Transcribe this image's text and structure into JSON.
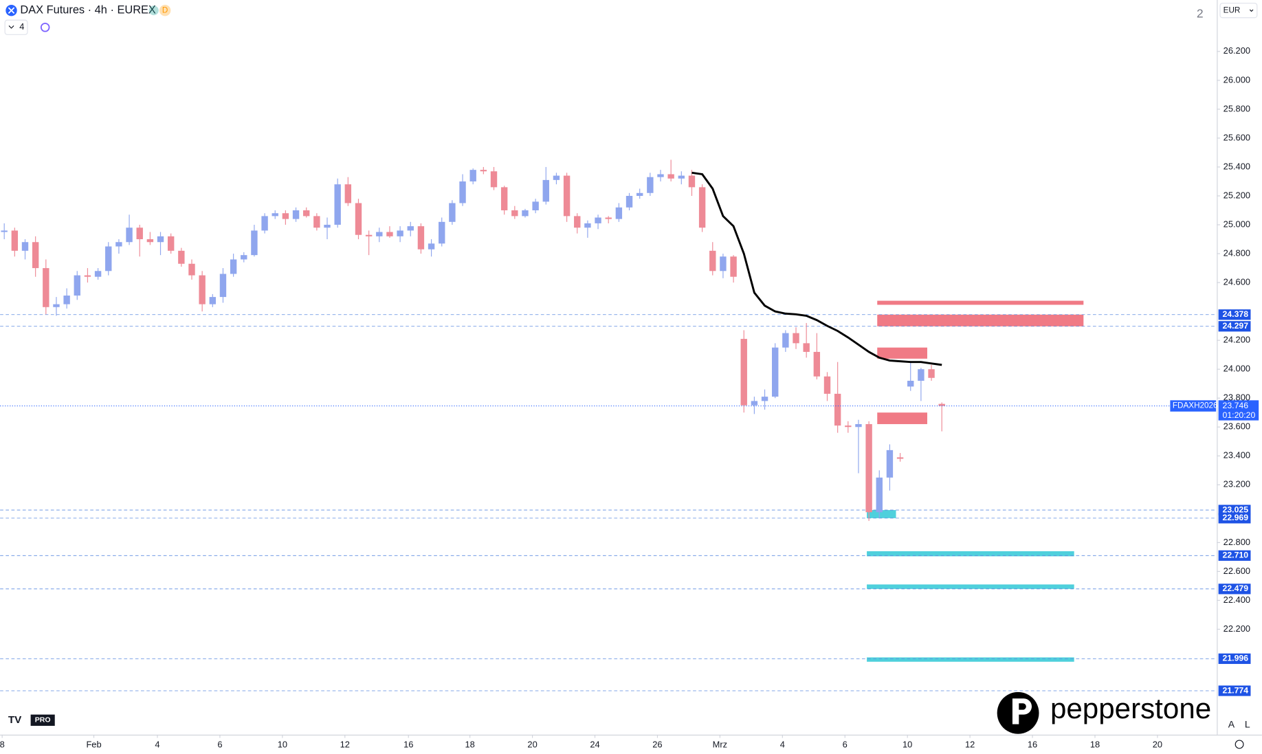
{
  "header": {
    "title": "DAX Futures · 4h · EUREX",
    "badge": "D",
    "indicator_count": "4",
    "layout_count": "2",
    "currency": "EUR",
    "scale_auto": "A",
    "scale_log": "L",
    "brand": "pepperstone",
    "tv_badge": "PRO"
  },
  "chart_data": {
    "type": "candlestick",
    "up_color": "#8fa6ee",
    "down_color": "#ee8a96",
    "ma_color": "#000000",
    "xlim": [
      -0.4,
      116.4
    ],
    "xticks": [
      {
        "value": -0.2,
        "label": "8"
      },
      {
        "value": 8.6,
        "label": "Feb"
      },
      {
        "value": 14.7,
        "label": "4"
      },
      {
        "value": 20.7,
        "label": "6"
      },
      {
        "value": 26.7,
        "label": "10"
      },
      {
        "value": 32.7,
        "label": "12"
      },
      {
        "value": 38.8,
        "label": "16"
      },
      {
        "value": 44.7,
        "label": "18"
      },
      {
        "value": 50.7,
        "label": "20"
      },
      {
        "value": 56.7,
        "label": "24"
      },
      {
        "value": 62.7,
        "label": "26"
      },
      {
        "value": 68.7,
        "label": "Mrz"
      },
      {
        "value": 74.7,
        "label": "4"
      },
      {
        "value": 80.7,
        "label": "6"
      },
      {
        "value": 86.7,
        "label": "10"
      },
      {
        "value": 92.7,
        "label": "12"
      },
      {
        "value": 98.7,
        "label": "16"
      },
      {
        "value": 104.7,
        "label": "18"
      },
      {
        "value": 110.7,
        "label": "20"
      }
    ],
    "ylim": [
      21470,
      26556
    ],
    "yticks": [
      {
        "value": 26200,
        "label": "26.200"
      },
      {
        "value": 26000,
        "label": "26.000"
      },
      {
        "value": 25800,
        "label": "25.800"
      },
      {
        "value": 25600,
        "label": "25.600"
      },
      {
        "value": 25400,
        "label": "25.400"
      },
      {
        "value": 25200,
        "label": "25.200"
      },
      {
        "value": 25000,
        "label": "25.000"
      },
      {
        "value": 24800,
        "label": "24.800"
      },
      {
        "value": 24600,
        "label": "24.600"
      },
      {
        "value": 24200,
        "label": "24.200"
      },
      {
        "value": 24000,
        "label": "24.000"
      },
      {
        "value": 23800,
        "label": "23.800"
      },
      {
        "value": 23600,
        "label": "23.600"
      },
      {
        "value": 23400,
        "label": "23.400"
      },
      {
        "value": 23200,
        "label": "23.200"
      },
      {
        "value": 22800,
        "label": "22.800"
      },
      {
        "value": 22600,
        "label": "22.600"
      },
      {
        "value": 22400,
        "label": "22.400"
      },
      {
        "value": 22200,
        "label": "22.200"
      }
    ],
    "ohlc": [
      [
        24950,
        25010,
        24900,
        24960
      ],
      [
        24960,
        24980,
        24780,
        24820
      ],
      [
        24820,
        24900,
        24760,
        24880
      ],
      [
        24880,
        24920,
        24640,
        24700
      ],
      [
        24700,
        24760,
        24380,
        24430
      ],
      [
        24430,
        24500,
        24370,
        24450
      ],
      [
        24450,
        24560,
        24420,
        24510
      ],
      [
        24510,
        24680,
        24480,
        24650
      ],
      [
        24650,
        24700,
        24600,
        24640
      ],
      [
        24640,
        24700,
        24620,
        24680
      ],
      [
        24680,
        24880,
        24650,
        24850
      ],
      [
        24850,
        24900,
        24800,
        24880
      ],
      [
        24880,
        25070,
        24860,
        24980
      ],
      [
        24980,
        25000,
        24780,
        24900
      ],
      [
        24900,
        24950,
        24860,
        24880
      ],
      [
        24880,
        24950,
        24790,
        24920
      ],
      [
        24920,
        24940,
        24800,
        24820
      ],
      [
        24820,
        24840,
        24710,
        24730
      ],
      [
        24730,
        24760,
        24620,
        24650
      ],
      [
        24650,
        24680,
        24400,
        24450
      ],
      [
        24450,
        24520,
        24430,
        24500
      ],
      [
        24500,
        24700,
        24460,
        24660
      ],
      [
        24660,
        24800,
        24640,
        24760
      ],
      [
        24760,
        24810,
        24740,
        24790
      ],
      [
        24790,
        25000,
        24780,
        24960
      ],
      [
        24960,
        25080,
        24940,
        25060
      ],
      [
        25060,
        25100,
        25040,
        25080
      ],
      [
        25080,
        25100,
        25000,
        25040
      ],
      [
        25040,
        25120,
        25020,
        25100
      ],
      [
        25100,
        25120,
        25050,
        25060
      ],
      [
        25060,
        25080,
        24960,
        24980
      ],
      [
        24980,
        25050,
        24900,
        25000
      ],
      [
        25000,
        25320,
        24980,
        25280
      ],
      [
        25280,
        25330,
        25130,
        25150
      ],
      [
        25150,
        25180,
        24900,
        24930
      ],
      [
        24930,
        24960,
        24790,
        24920
      ],
      [
        24920,
        24980,
        24880,
        24950
      ],
      [
        24950,
        24990,
        24910,
        24920
      ],
      [
        24920,
        24990,
        24880,
        24960
      ],
      [
        24960,
        25020,
        24920,
        24990
      ],
      [
        24990,
        25010,
        24800,
        24830
      ],
      [
        24830,
        24900,
        24780,
        24870
      ],
      [
        24870,
        25050,
        24850,
        25020
      ],
      [
        25020,
        25170,
        25000,
        25150
      ],
      [
        25150,
        25350,
        25130,
        25300
      ],
      [
        25300,
        25390,
        25280,
        25380
      ],
      [
        25380,
        25400,
        25350,
        25370
      ],
      [
        25370,
        25400,
        25240,
        25260
      ],
      [
        25260,
        25270,
        25070,
        25100
      ],
      [
        25100,
        25130,
        25040,
        25060
      ],
      [
        25060,
        25110,
        25050,
        25100
      ],
      [
        25100,
        25180,
        25080,
        25160
      ],
      [
        25160,
        25400,
        25140,
        25310
      ],
      [
        25310,
        25360,
        25280,
        25340
      ],
      [
        25340,
        25360,
        25020,
        25060
      ],
      [
        25060,
        25080,
        24940,
        24980
      ],
      [
        24980,
        25030,
        24910,
        25010
      ],
      [
        25010,
        25070,
        24970,
        25050
      ],
      [
        25050,
        25060,
        25010,
        25040
      ],
      [
        25040,
        25150,
        25020,
        25120
      ],
      [
        25120,
        25220,
        25100,
        25200
      ],
      [
        25200,
        25250,
        25180,
        25220
      ],
      [
        25220,
        25360,
        25200,
        25330
      ],
      [
        25330,
        25380,
        25300,
        25350
      ],
      [
        25350,
        25450,
        25300,
        25320
      ],
      [
        25320,
        25370,
        25280,
        25340
      ],
      [
        25340,
        25380,
        25200,
        25260
      ],
      [
        25260,
        25280,
        24950,
        24980
      ],
      [
        24820,
        24880,
        24650,
        24680
      ],
      [
        24680,
        24800,
        24630,
        24780
      ],
      [
        24780,
        24790,
        24600,
        24640
      ],
      [
        24210,
        24270,
        23700,
        23750
      ],
      [
        23750,
        23810,
        23690,
        23780
      ],
      [
        23780,
        23860,
        23720,
        23810
      ],
      [
        23810,
        24180,
        23800,
        24150
      ],
      [
        24150,
        24270,
        24120,
        24250
      ],
      [
        24250,
        24290,
        24140,
        24180
      ],
      [
        24180,
        24320,
        24080,
        24120
      ],
      [
        24120,
        24250,
        23930,
        23950
      ],
      [
        23950,
        23980,
        23780,
        23830
      ],
      [
        23830,
        24050,
        23560,
        23610
      ],
      [
        23610,
        23640,
        23560,
        23600
      ],
      [
        23600,
        23650,
        23280,
        23620
      ],
      [
        23620,
        23640,
        22950,
        23010
      ],
      [
        23010,
        23300,
        22970,
        23250
      ],
      [
        23250,
        23480,
        23160,
        23440
      ],
      [
        23390,
        23420,
        23360,
        23380
      ],
      [
        23880,
        24050,
        23850,
        23920
      ],
      [
        23920,
        24010,
        23780,
        24000
      ],
      [
        24000,
        24030,
        23920,
        23940
      ],
      [
        23760,
        23770,
        23570,
        23746
      ]
    ],
    "ma": [
      null,
      null,
      null,
      null,
      null,
      null,
      null,
      null,
      null,
      null,
      null,
      null,
      null,
      null,
      null,
      null,
      null,
      null,
      null,
      null,
      null,
      null,
      null,
      null,
      null,
      null,
      null,
      null,
      null,
      null,
      null,
      null,
      null,
      null,
      null,
      null,
      null,
      null,
      null,
      null,
      null,
      null,
      null,
      null,
      null,
      null,
      null,
      null,
      null,
      null,
      null,
      null,
      null,
      null,
      null,
      null,
      null,
      null,
      null,
      null,
      null,
      null,
      null,
      null,
      null,
      null,
      25360,
      25350,
      25250,
      25060,
      24990,
      24800,
      24530,
      24440,
      24400,
      24385,
      24380,
      24370,
      24340,
      24300,
      24265,
      24220,
      24170,
      24120,
      24080,
      24060,
      24055,
      24050,
      24050,
      24040,
      24030
    ],
    "zones": [
      {
        "x": [
          83.8,
          103.6
        ],
        "range": [
          24446,
          24474
        ],
        "color": "#f07a85"
      },
      {
        "x": [
          83.8,
          103.6
        ],
        "range": [
          24297,
          24378
        ],
        "color": "#f07a85"
      },
      {
        "x": [
          83.8,
          88.6
        ],
        "range": [
          24073,
          24150
        ],
        "color": "#f07a85"
      },
      {
        "x": [
          83.8,
          88.6
        ],
        "range": [
          23620,
          23700
        ],
        "color": "#f07a85"
      },
      {
        "x": [
          82.8,
          85.6
        ],
        "range": [
          22969,
          23025
        ],
        "color": "#4fd0dc"
      },
      {
        "x": [
          82.8,
          102.7
        ],
        "range": [
          22705,
          22740
        ],
        "color": "#4fd0dc"
      },
      {
        "x": [
          82.8,
          102.7
        ],
        "range": [
          22479,
          22510
        ],
        "color": "#4fd0dc"
      },
      {
        "x": [
          82.8,
          102.7
        ],
        "range": [
          21975,
          22005
        ],
        "color": "#4fd0dc"
      }
    ],
    "levels": [
      {
        "value": 24378,
        "label": "24.378"
      },
      {
        "value": 24297,
        "label": "24.297"
      },
      {
        "value": 23025,
        "label": "23.025"
      },
      {
        "value": 22969,
        "label": "22.969"
      },
      {
        "value": 22710,
        "label": "22.710"
      },
      {
        "value": 22479,
        "label": "22.479"
      },
      {
        "value": 21996,
        "label": "21.996"
      },
      {
        "value": 21774,
        "label": "21.774"
      }
    ],
    "last_price": {
      "value": 23746,
      "label": "23.746",
      "symbol": "FDAXH2026",
      "countdown": "01:20:20"
    }
  }
}
